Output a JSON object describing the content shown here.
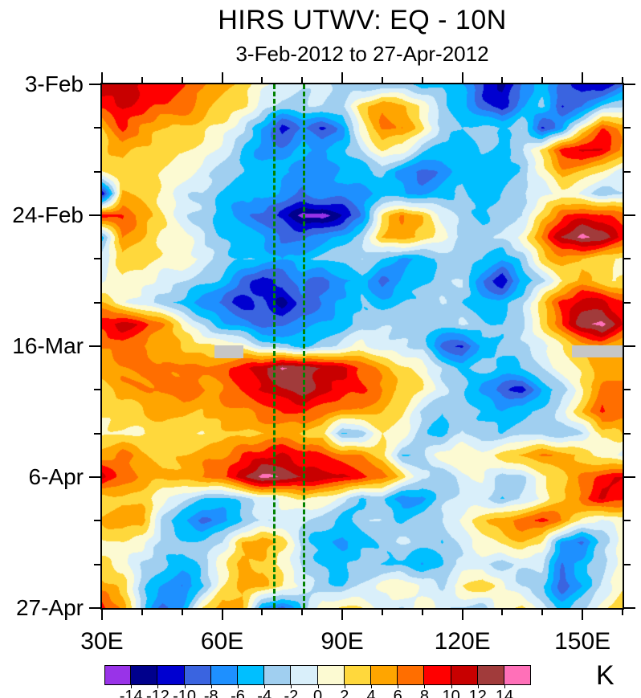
{
  "title": "HIRS UTWV: EQ - 10N",
  "subtitle": "3-Feb-2012 to 27-Apr-2012",
  "colorbar": {
    "unit_label": "K",
    "tick_labels": [
      "-14",
      "-12",
      "-10",
      "-8",
      "-6",
      "-4",
      "-2",
      "0",
      "2",
      "4",
      "6",
      "8",
      "10",
      "12",
      "14"
    ]
  },
  "chart_data": {
    "type": "heatmap",
    "title": "HIRS UTWV: EQ - 10N",
    "subtitle": "3-Feb-2012 to 27-Apr-2012",
    "units": "K",
    "x_tick_labels": [
      "30E",
      "60E",
      "90E",
      "120E",
      "150E"
    ],
    "x_major_lons": [
      30,
      60,
      90,
      120,
      150
    ],
    "x_minor_step": 10,
    "x_range": [
      30,
      160
    ],
    "y_tick_labels": [
      "3-Feb",
      "24-Feb",
      "16-Mar",
      "6-Apr",
      "27-Apr"
    ],
    "y_major_days": [
      0,
      21,
      42,
      63,
      84
    ],
    "y_minor_step": 7,
    "y_range_days": [
      0,
      84
    ],
    "legend_position": "bottom",
    "levels": [
      -14,
      -12,
      -10,
      -8,
      -6,
      -4,
      -2,
      0,
      2,
      4,
      6,
      8,
      10,
      12,
      14
    ],
    "palette": [
      "#9933E8",
      "#00008C",
      "#0000D0",
      "#3A64E0",
      "#1E90FF",
      "#00BFFF",
      "#A0CFF0",
      "#D9EFFA",
      "#FCFAD2",
      "#FFD83C",
      "#FFA500",
      "#FF6E00",
      "#FF0000",
      "#C80000",
      "#A13B3B",
      "#FF70B8"
    ],
    "grid_lons": [
      30,
      35,
      40,
      45,
      50,
      55,
      60,
      65,
      70,
      75,
      80,
      85,
      90,
      95,
      100,
      105,
      110,
      115,
      120,
      125,
      130,
      135,
      140,
      145,
      150,
      155,
      160
    ],
    "grid_days": [
      0,
      3.5,
      7,
      10.5,
      14,
      17.5,
      21,
      24.5,
      28,
      31.5,
      35,
      38.5,
      42,
      45.5,
      49,
      52.5,
      56,
      59.5,
      63,
      66.5,
      70,
      73.5,
      77,
      80.5,
      84
    ],
    "values": [
      [
        11,
        11,
        10,
        9,
        8,
        7,
        5,
        3,
        1,
        -1,
        -2,
        -1,
        -3,
        -4,
        -3,
        -4,
        -5,
        -4,
        -6,
        -10,
        -12,
        -8,
        -5,
        -8,
        -12,
        -12,
        -8
      ],
      [
        9,
        10,
        9,
        8,
        7,
        5,
        4,
        2,
        -1,
        -3,
        -3,
        -2,
        -2,
        3,
        6,
        5,
        1,
        -3,
        -5,
        -9,
        -11,
        -6,
        -4,
        -10,
        -8,
        -4,
        -2
      ],
      [
        4,
        8,
        6,
        4,
        4,
        3,
        1,
        -2,
        -6,
        -11,
        -8,
        -10,
        -7,
        1,
        6,
        6,
        2,
        -2,
        -4,
        -3,
        -4,
        -2,
        -11,
        -6,
        2,
        8,
        6
      ],
      [
        3,
        5,
        4,
        3,
        2,
        1,
        -1,
        -4,
        -7,
        -7,
        -5,
        -6,
        -5,
        -2,
        2,
        1,
        -3,
        -5,
        -5,
        -4,
        -5,
        -3,
        3,
        9,
        11,
        10,
        6
      ],
      [
        2,
        3,
        3,
        2,
        1,
        -1,
        -3,
        -4,
        -5,
        -5,
        -6,
        -7,
        -6,
        -5,
        -4,
        -7,
        -9,
        -7,
        -5,
        -5,
        -6,
        -4,
        1,
        5,
        4,
        2,
        -1
      ],
      [
        -12,
        4,
        3,
        1,
        -1,
        -2,
        -4,
        -6,
        -5,
        -7,
        -8,
        -6,
        -7,
        -6,
        -5,
        -6,
        -7,
        -5,
        -4,
        -5,
        -4,
        -2,
        -1,
        1,
        -1,
        -3,
        -2
      ],
      [
        9,
        8,
        5,
        2,
        -1,
        -3,
        -5,
        -7,
        -9,
        -11,
        -14,
        -15,
        -12,
        -7,
        2,
        6,
        4,
        -1,
        -3,
        -4,
        -3,
        -2,
        3,
        7,
        9,
        9,
        7
      ],
      [
        -4,
        6,
        4,
        2,
        1,
        -2,
        -4,
        -5,
        -6,
        -8,
        -9,
        -7,
        -5,
        -3,
        4,
        6,
        3,
        1,
        -2,
        -3,
        -2,
        1,
        6,
        12,
        15,
        13,
        9
      ],
      [
        -1,
        4,
        3,
        2,
        1,
        -1,
        -3,
        -4,
        -5,
        -6,
        -5,
        -4,
        -3,
        -2,
        -4,
        -6,
        -5,
        -4,
        -3,
        -4,
        -6,
        -3,
        3,
        5,
        4,
        2,
        1
      ],
      [
        -1,
        2,
        1,
        -1,
        -2,
        -3,
        -5,
        -8,
        -11,
        -9,
        -7,
        -9,
        -7,
        -5,
        -9,
        -6,
        -4,
        -3,
        -2,
        -8,
        -12,
        -6,
        -2,
        2,
        5,
        3,
        2
      ],
      [
        4,
        1,
        -1,
        -3,
        -5,
        -7,
        -9,
        -11,
        -9,
        -13,
        -9,
        -8,
        -6,
        -4,
        -5,
        -4,
        -3,
        -2,
        -4,
        -6,
        -5,
        -3,
        4,
        9,
        11,
        11,
        8
      ],
      [
        9,
        11,
        9,
        6,
        2,
        -2,
        -5,
        -7,
        -9,
        -9,
        -7,
        -6,
        -5,
        -3,
        -2,
        -3,
        -4,
        -3,
        -2,
        -3,
        -4,
        -2,
        2,
        8,
        13,
        15,
        10
      ],
      [
        6,
        7,
        6,
        5,
        4,
        3,
        2,
        1,
        -2,
        -4,
        -5,
        -3,
        -1,
        1,
        -1,
        -2,
        -3,
        -9,
        -11,
        -5,
        -3,
        -2,
        -1,
        2,
        4,
        6,
        4
      ],
      [
        5,
        6,
        7,
        7,
        6,
        6,
        7,
        9,
        11,
        15,
        13,
        12,
        11,
        7,
        5,
        3,
        1,
        -2,
        -4,
        -3,
        -5,
        -4,
        -2,
        1,
        3,
        5,
        5
      ],
      [
        3,
        5,
        6,
        7,
        7,
        6,
        6,
        8,
        10,
        12,
        13,
        11,
        9,
        8,
        6,
        4,
        2,
        -1,
        -3,
        -7,
        -9,
        -11,
        -6,
        -3,
        2,
        6,
        8
      ],
      [
        2,
        3,
        4,
        5,
        5,
        4,
        5,
        6,
        7,
        8,
        9,
        7,
        5,
        6,
        4,
        2,
        -2,
        -4,
        -3,
        -4,
        -6,
        -5,
        -3,
        -1,
        4,
        9,
        7
      ],
      [
        1,
        2,
        2,
        3,
        3,
        2,
        3,
        4,
        4,
        5,
        4,
        3,
        -5,
        -3,
        2,
        1,
        -3,
        -5,
        -2,
        -3,
        -4,
        -3,
        -2,
        -4,
        -2,
        3,
        4
      ],
      [
        5,
        7,
        4,
        3,
        4,
        5,
        6,
        8,
        9,
        10,
        9,
        8,
        7,
        6,
        3,
        -4,
        -3,
        1,
        2,
        1,
        3,
        5,
        6,
        5,
        3,
        1,
        -1
      ],
      [
        11,
        7,
        5,
        4,
        5,
        6,
        8,
        11,
        15,
        13,
        12,
        11,
        11,
        9,
        7,
        3,
        -2,
        -4,
        -1,
        1,
        -3,
        -2,
        1,
        3,
        6,
        9,
        10
      ],
      [
        3,
        4,
        3,
        1,
        -2,
        -4,
        -5,
        -3,
        -1,
        1,
        2,
        1,
        -1,
        -5,
        -3,
        -7,
        -6,
        -3,
        -1,
        -2,
        -4,
        -2,
        1,
        4,
        7,
        10,
        8
      ],
      [
        5,
        6,
        5,
        -2,
        -6,
        -9,
        -7,
        -4,
        -2,
        -1,
        -2,
        -3,
        -5,
        -3,
        -2,
        -4,
        -3,
        -2,
        1,
        3,
        5,
        7,
        9,
        6,
        2,
        -1,
        1
      ],
      [
        1,
        2,
        1,
        -3,
        -4,
        -3,
        -2,
        4,
        6,
        3,
        -3,
        -5,
        -7,
        -5,
        -3,
        -2,
        -3,
        -4,
        -2,
        1,
        3,
        4,
        2,
        -6,
        -9,
        -3,
        1
      ],
      [
        2,
        1,
        -2,
        -4,
        -5,
        -3,
        1,
        5,
        4,
        1,
        -2,
        -4,
        -5,
        -3,
        -4,
        -5,
        -6,
        -4,
        -2,
        -1,
        -3,
        -2,
        -1,
        -8,
        -5,
        -2,
        1
      ],
      [
        5,
        3,
        -3,
        -6,
        -8,
        -4,
        2,
        4,
        5,
        2,
        -1,
        -3,
        -4,
        -2,
        1,
        2,
        -1,
        -2,
        2,
        4,
        1,
        -2,
        -4,
        -9,
        -6,
        -2,
        2
      ],
      [
        9,
        5,
        -3,
        -9,
        -6,
        2,
        6,
        4,
        -6,
        -9,
        -4,
        1,
        3,
        2,
        -1,
        -2,
        1,
        -1,
        -2,
        -3,
        2,
        3,
        -2,
        -5,
        -3,
        1,
        3
      ]
    ],
    "annotations": {
      "dashed_lines_lon": [
        73,
        80.4
      ],
      "dashed_line_color": "#028202",
      "missing_data_gray": [
        {
          "lon0": 58.1,
          "lon1": 65.4,
          "day0": 41.9,
          "day1": 43.9
        },
        {
          "lon0": 147.4,
          "lon1": 160,
          "day0": 41.9,
          "day1": 43.8
        }
      ]
    }
  }
}
